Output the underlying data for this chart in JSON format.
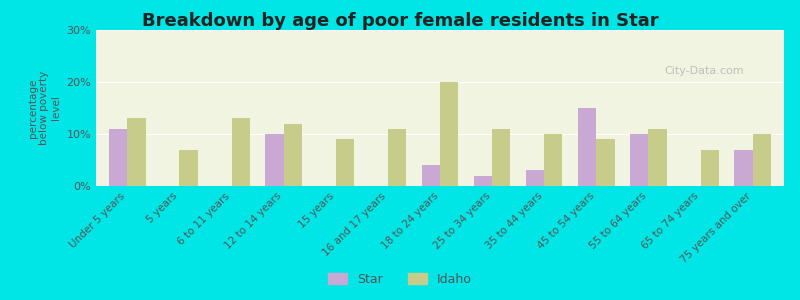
{
  "title": "Breakdown by age of poor female residents in Star",
  "ylabel": "percentage\nbelow poverty\nlevel",
  "categories": [
    "Under 5 years",
    "5 years",
    "6 to 11 years",
    "12 to 14 years",
    "15 years",
    "16 and 17 years",
    "18 to 24 years",
    "25 to 34 years",
    "35 to 44 years",
    "45 to 54 years",
    "55 to 64 years",
    "65 to 74 years",
    "75 years and over"
  ],
  "star_values": [
    11,
    0,
    0,
    10,
    0,
    0,
    4,
    2,
    3,
    15,
    10,
    0,
    7
  ],
  "idaho_values": [
    13,
    7,
    13,
    12,
    9,
    11,
    20,
    11,
    10,
    9,
    11,
    7,
    10
  ],
  "star_color": "#c9a8d4",
  "idaho_color": "#c8cc8a",
  "background_top": "#f0f4e0",
  "background_bottom": "#ffffff",
  "bg_outer": "#00e5e5",
  "ylim": [
    0,
    30
  ],
  "yticks": [
    0,
    10,
    20,
    30
  ],
  "ytick_labels": [
    "0%",
    "10%",
    "20%",
    "30%"
  ],
  "legend_star": "Star",
  "legend_idaho": "Idaho",
  "bar_width": 0.35
}
